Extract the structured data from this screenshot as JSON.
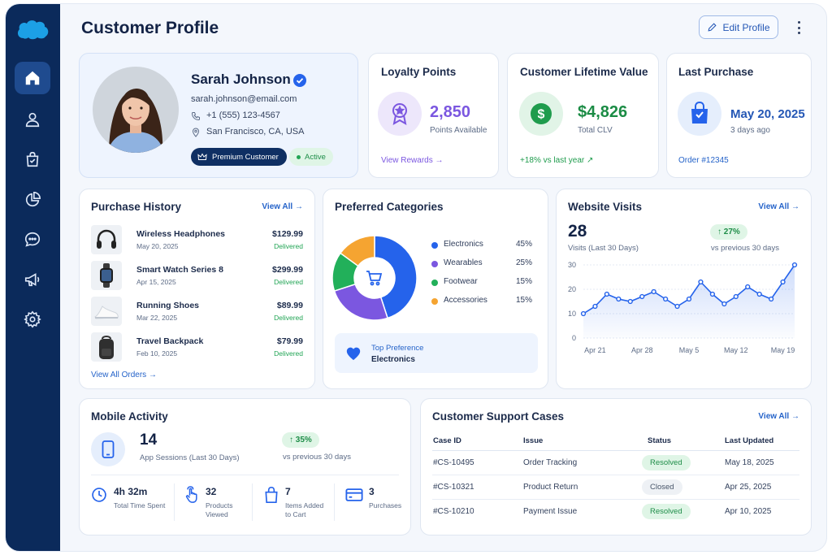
{
  "page": {
    "title": "Customer Profile",
    "edit_button": "Edit Profile"
  },
  "profile": {
    "name": "Sarah Johnson",
    "email": "sarah.johnson@email.com",
    "phone": "+1 (555) 123-4567",
    "location": "San Francisco, CA, USA",
    "tier": "Premium Customer",
    "status": "Active"
  },
  "loyalty": {
    "title": "Loyalty Points",
    "value": "2,850",
    "sub": "Points Available",
    "link": "View Rewards →"
  },
  "clv": {
    "title": "Customer Lifetime Value",
    "value": "$4,826",
    "sub": "Total CLV",
    "trend": "+18% vs last year ↗"
  },
  "last_purchase": {
    "title": "Last Purchase",
    "value": "May 20, 2025",
    "sub": "3 days ago",
    "link": "Order #12345"
  },
  "purchase_history": {
    "title": "Purchase History",
    "view_all": "View All →",
    "footer_link": "View All Orders →",
    "items": [
      {
        "name": "Wireless Headphones",
        "date": "May 20, 2025",
        "price": "$129.99",
        "status": "Delivered"
      },
      {
        "name": "Smart Watch Series 8",
        "date": "Apr 15, 2025",
        "price": "$299.99",
        "status": "Delivered"
      },
      {
        "name": "Running Shoes",
        "date": "Mar 22, 2025",
        "price": "$89.99",
        "status": "Delivered"
      },
      {
        "name": "Travel Backpack",
        "date": "Feb 10, 2025",
        "price": "$79.99",
        "status": "Delivered"
      }
    ]
  },
  "categories": {
    "title": "Preferred Categories",
    "top_label": "Top Preference",
    "top_value": "Electronics",
    "items": [
      {
        "name": "Electronics",
        "pct": "45%",
        "value": 45,
        "color": "#2563eb"
      },
      {
        "name": "Wearables",
        "pct": "25%",
        "value": 25,
        "color": "#7b57e0"
      },
      {
        "name": "Footwear",
        "pct": "15%",
        "value": 15,
        "color": "#22b05a"
      },
      {
        "name": "Accessories",
        "pct": "15%",
        "value": 15,
        "color": "#f5a431"
      }
    ]
  },
  "visits": {
    "title": "Website Visits",
    "view_all": "View All →",
    "value": "28",
    "sub": "Visits (Last 30 Days)",
    "trend": "↑ 27%",
    "trend_sub": "vs previous 30 days"
  },
  "chart_data": {
    "type": "area",
    "x_ticks": [
      "Apr 21",
      "Apr 28",
      "May 5",
      "May 12",
      "May 19"
    ],
    "y_ticks": [
      "30",
      "20",
      "10",
      "0"
    ],
    "ylim": [
      0,
      30
    ],
    "series": [
      {
        "values": [
          10,
          13,
          18,
          16,
          15,
          17,
          19,
          16,
          13,
          16,
          23,
          18,
          14,
          17,
          21,
          18,
          16,
          23,
          30
        ]
      }
    ]
  },
  "mobile": {
    "title": "Mobile Activity",
    "value": "14",
    "sub": "App Sessions (Last 30 Days)",
    "trend": "↑ 35%",
    "trend_sub": "vs previous 30 days",
    "stats": [
      {
        "value": "4h 32m",
        "label": "Total Time Spent"
      },
      {
        "value": "32",
        "label": "Products Viewed"
      },
      {
        "value": "7",
        "label": "Items Added to Cart"
      },
      {
        "value": "3",
        "label": "Purchases"
      }
    ]
  },
  "support": {
    "title": "Customer Support Cases",
    "view_all": "View All →",
    "headers": [
      "Case ID",
      "Issue",
      "Status",
      "Last Updated"
    ],
    "rows": [
      {
        "id": "#CS-10495",
        "issue": "Order Tracking",
        "status": "Resolved",
        "updated": "May 18, 2025"
      },
      {
        "id": "#CS-10321",
        "issue": "Product Return",
        "status": "Closed",
        "updated": "Apr 25, 2025"
      },
      {
        "id": "#CS-10210",
        "issue": "Payment Issue",
        "status": "Resolved",
        "updated": "Apr 10, 2025"
      }
    ]
  }
}
